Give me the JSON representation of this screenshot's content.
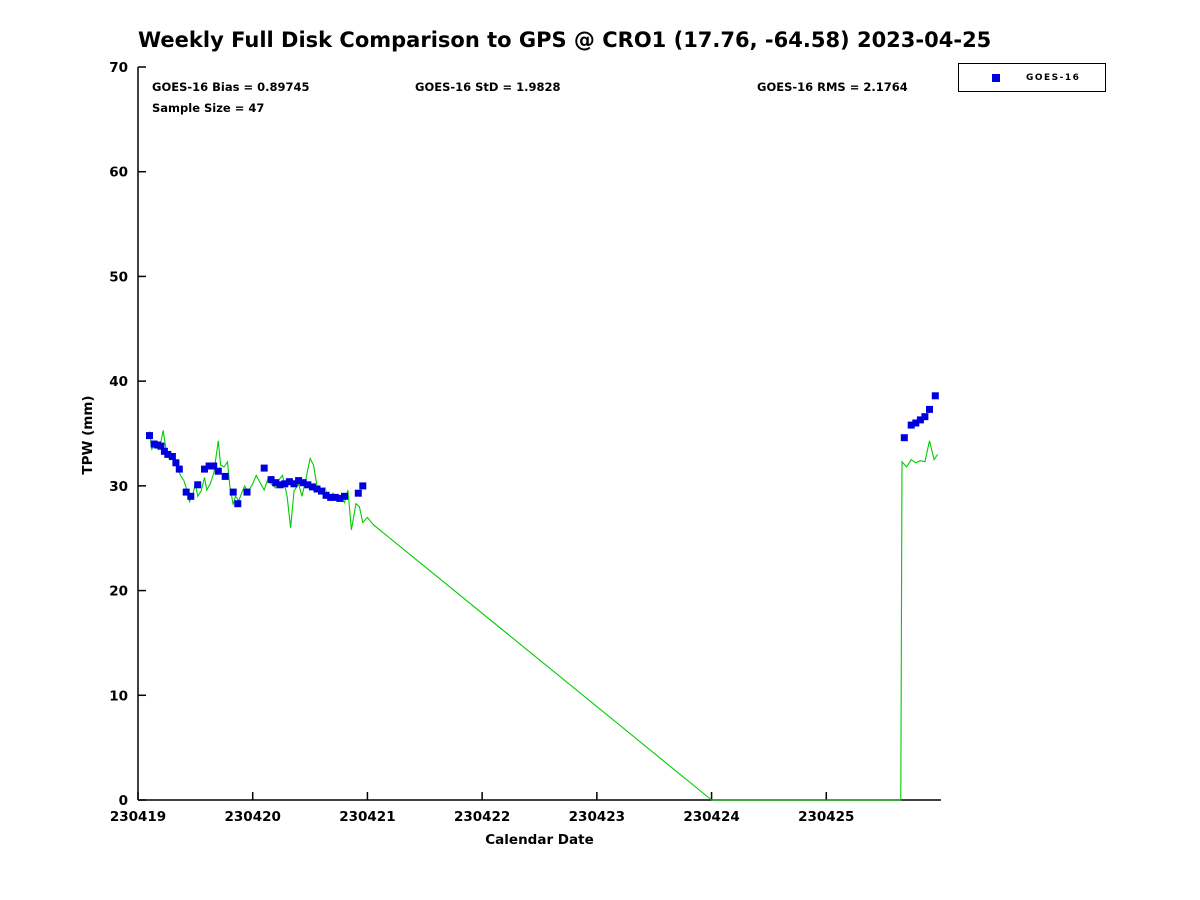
{
  "annotations": {
    "bias": "GOES-16 Bias = 0.89745",
    "std": "GOES-16 StD = 1.9828",
    "rms": "GOES-16 RMS = 2.1764",
    "sample": "Sample Size = 47"
  },
  "legend": {
    "entries": [
      {
        "label": "GOES-16",
        "marker": "square",
        "color": "#0000dd"
      }
    ]
  },
  "chart_data": {
    "type": "line",
    "title": "Weekly Full Disk Comparison to GPS @ CRO1 (17.76, -64.58) 2023-04-25",
    "xlabel": "Calendar Date",
    "ylabel": "TPW (mm)",
    "xlim": [
      230419,
      230426
    ],
    "ylim": [
      0,
      70
    ],
    "x_ticks": [
      230419,
      230420,
      230421,
      230422,
      230423,
      230424,
      230425
    ],
    "y_ticks": [
      0,
      10,
      20,
      30,
      40,
      50,
      60,
      70
    ],
    "grid": false,
    "legend_position": "top-right",
    "series": [
      {
        "name": "GPS",
        "type": "line",
        "color": "#00cc00",
        "points": [
          [
            230419.1,
            35.2
          ],
          [
            230419.12,
            33.5
          ],
          [
            230419.15,
            34.0
          ],
          [
            230419.18,
            33.5
          ],
          [
            230419.2,
            34.2
          ],
          [
            230419.22,
            35.3
          ],
          [
            230419.25,
            33.0
          ],
          [
            230419.28,
            32.5
          ],
          [
            230419.31,
            32.8
          ],
          [
            230419.34,
            32.0
          ],
          [
            230419.37,
            31.0
          ],
          [
            230419.4,
            30.5
          ],
          [
            230419.42,
            29.8
          ],
          [
            230419.45,
            28.5
          ],
          [
            230419.48,
            29.3
          ],
          [
            230419.5,
            30.2
          ],
          [
            230419.52,
            29.0
          ],
          [
            230419.55,
            29.5
          ],
          [
            230419.58,
            30.8
          ],
          [
            230419.6,
            29.6
          ],
          [
            230419.63,
            30.2
          ],
          [
            230419.66,
            31.2
          ],
          [
            230419.7,
            34.3
          ],
          [
            230419.72,
            32.0
          ],
          [
            230419.75,
            31.8
          ],
          [
            230419.78,
            32.3
          ],
          [
            230419.8,
            30.0
          ],
          [
            230419.83,
            28.2
          ],
          [
            230419.85,
            29.0
          ],
          [
            230419.88,
            28.6
          ],
          [
            230419.9,
            29.2
          ],
          [
            230419.93,
            30.0
          ],
          [
            230419.96,
            29.4
          ],
          [
            230420.0,
            30.2
          ],
          [
            230420.03,
            31.0
          ],
          [
            230420.06,
            30.4
          ],
          [
            230420.1,
            29.6
          ],
          [
            230420.13,
            30.6
          ],
          [
            230420.16,
            30.2
          ],
          [
            230420.2,
            29.8
          ],
          [
            230420.23,
            30.6
          ],
          [
            230420.26,
            31.0
          ],
          [
            230420.3,
            29.0
          ],
          [
            230420.33,
            26.0
          ],
          [
            230420.36,
            29.5
          ],
          [
            230420.4,
            30.2
          ],
          [
            230420.43,
            29.0
          ],
          [
            230420.46,
            30.5
          ],
          [
            230420.5,
            32.6
          ],
          [
            230420.53,
            32.0
          ],
          [
            230420.56,
            30.0
          ],
          [
            230420.6,
            29.3
          ],
          [
            230420.63,
            29.8
          ],
          [
            230420.66,
            28.8
          ],
          [
            230420.7,
            29.3
          ],
          [
            230420.73,
            28.6
          ],
          [
            230420.76,
            29.0
          ],
          [
            230420.8,
            28.4
          ],
          [
            230420.83,
            29.6
          ],
          [
            230420.86,
            25.8
          ],
          [
            230420.9,
            28.3
          ],
          [
            230420.93,
            28.0
          ],
          [
            230420.96,
            26.5
          ],
          [
            230421.0,
            27.0
          ],
          [
            230421.05,
            26.3
          ],
          [
            230424.0,
            0.0
          ],
          [
            230425.65,
            0.0
          ],
          [
            230425.66,
            32.3
          ],
          [
            230425.7,
            31.8
          ],
          [
            230425.74,
            32.5
          ],
          [
            230425.78,
            32.2
          ],
          [
            230425.82,
            32.4
          ],
          [
            230425.86,
            32.3
          ],
          [
            230425.9,
            34.3
          ],
          [
            230425.94,
            32.5
          ],
          [
            230425.97,
            33.0
          ]
        ]
      },
      {
        "name": "GOES-16",
        "type": "scatter",
        "marker": "square",
        "color": "#0000dd",
        "points": [
          [
            230419.1,
            34.8
          ],
          [
            230419.14,
            34.0
          ],
          [
            230419.17,
            33.9
          ],
          [
            230419.2,
            33.8
          ],
          [
            230419.23,
            33.3
          ],
          [
            230419.26,
            33.0
          ],
          [
            230419.3,
            32.8
          ],
          [
            230419.33,
            32.2
          ],
          [
            230419.36,
            31.6
          ],
          [
            230419.42,
            29.4
          ],
          [
            230419.46,
            29.0
          ],
          [
            230419.52,
            30.1
          ],
          [
            230419.58,
            31.6
          ],
          [
            230419.62,
            31.9
          ],
          [
            230419.66,
            31.9
          ],
          [
            230419.7,
            31.4
          ],
          [
            230419.76,
            30.9
          ],
          [
            230419.83,
            29.4
          ],
          [
            230419.87,
            28.3
          ],
          [
            230419.95,
            29.4
          ],
          [
            230420.1,
            31.7
          ],
          [
            230420.16,
            30.6
          ],
          [
            230420.2,
            30.3
          ],
          [
            230420.24,
            30.1
          ],
          [
            230420.28,
            30.2
          ],
          [
            230420.32,
            30.4
          ],
          [
            230420.36,
            30.2
          ],
          [
            230420.4,
            30.5
          ],
          [
            230420.44,
            30.3
          ],
          [
            230420.48,
            30.1
          ],
          [
            230420.52,
            29.9
          ],
          [
            230420.56,
            29.7
          ],
          [
            230420.6,
            29.5
          ],
          [
            230420.64,
            29.1
          ],
          [
            230420.68,
            28.9
          ],
          [
            230420.72,
            28.9
          ],
          [
            230420.76,
            28.8
          ],
          [
            230420.8,
            29.0
          ],
          [
            230420.92,
            29.3
          ],
          [
            230420.96,
            30.0
          ],
          [
            230425.68,
            34.6
          ],
          [
            230425.74,
            35.8
          ],
          [
            230425.78,
            36.0
          ],
          [
            230425.82,
            36.3
          ],
          [
            230425.86,
            36.6
          ],
          [
            230425.9,
            37.3
          ],
          [
            230425.95,
            38.6
          ]
        ]
      }
    ]
  }
}
